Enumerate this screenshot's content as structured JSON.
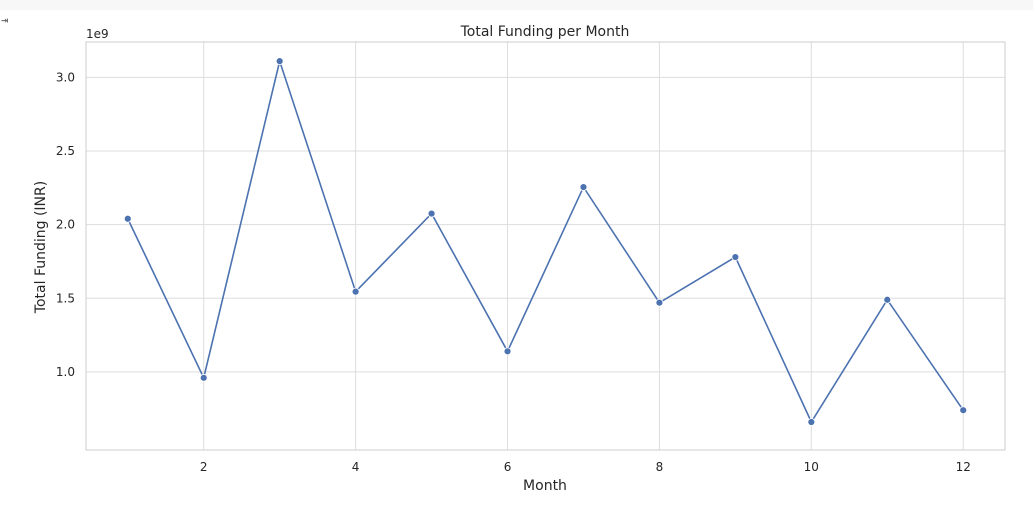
{
  "cell_gutter": {
    "output_icon": "output-toggle-icon"
  },
  "chart_data": {
    "type": "line",
    "title": "Total Funding per Month",
    "xlabel": "Month",
    "ylabel": "Total Funding (INR)",
    "y_scale_label": "1e9",
    "x": [
      1,
      2,
      3,
      4,
      5,
      6,
      7,
      8,
      9,
      10,
      11,
      12
    ],
    "series": [
      {
        "values": [
          2.04,
          0.96,
          3.11,
          1.545,
          2.075,
          1.14,
          2.255,
          1.47,
          1.78,
          0.66,
          1.49,
          0.74
        ],
        "color": "#4c72b0"
      }
    ],
    "xlim": [
      0.45,
      12.55
    ],
    "ylim": [
      0.47,
      3.24
    ],
    "x_ticks": [
      2,
      4,
      6,
      8,
      10,
      12
    ],
    "x_tick_labels": [
      "2",
      "4",
      "6",
      "8",
      "10",
      "12"
    ],
    "y_ticks": [
      1.0,
      1.5,
      2.0,
      2.5,
      3.0
    ],
    "y_tick_labels": [
      "1.0",
      "1.5",
      "2.0",
      "2.5",
      "3.0"
    ],
    "grid": true,
    "style": "seaborn-whitegrid",
    "markers": "circle"
  }
}
